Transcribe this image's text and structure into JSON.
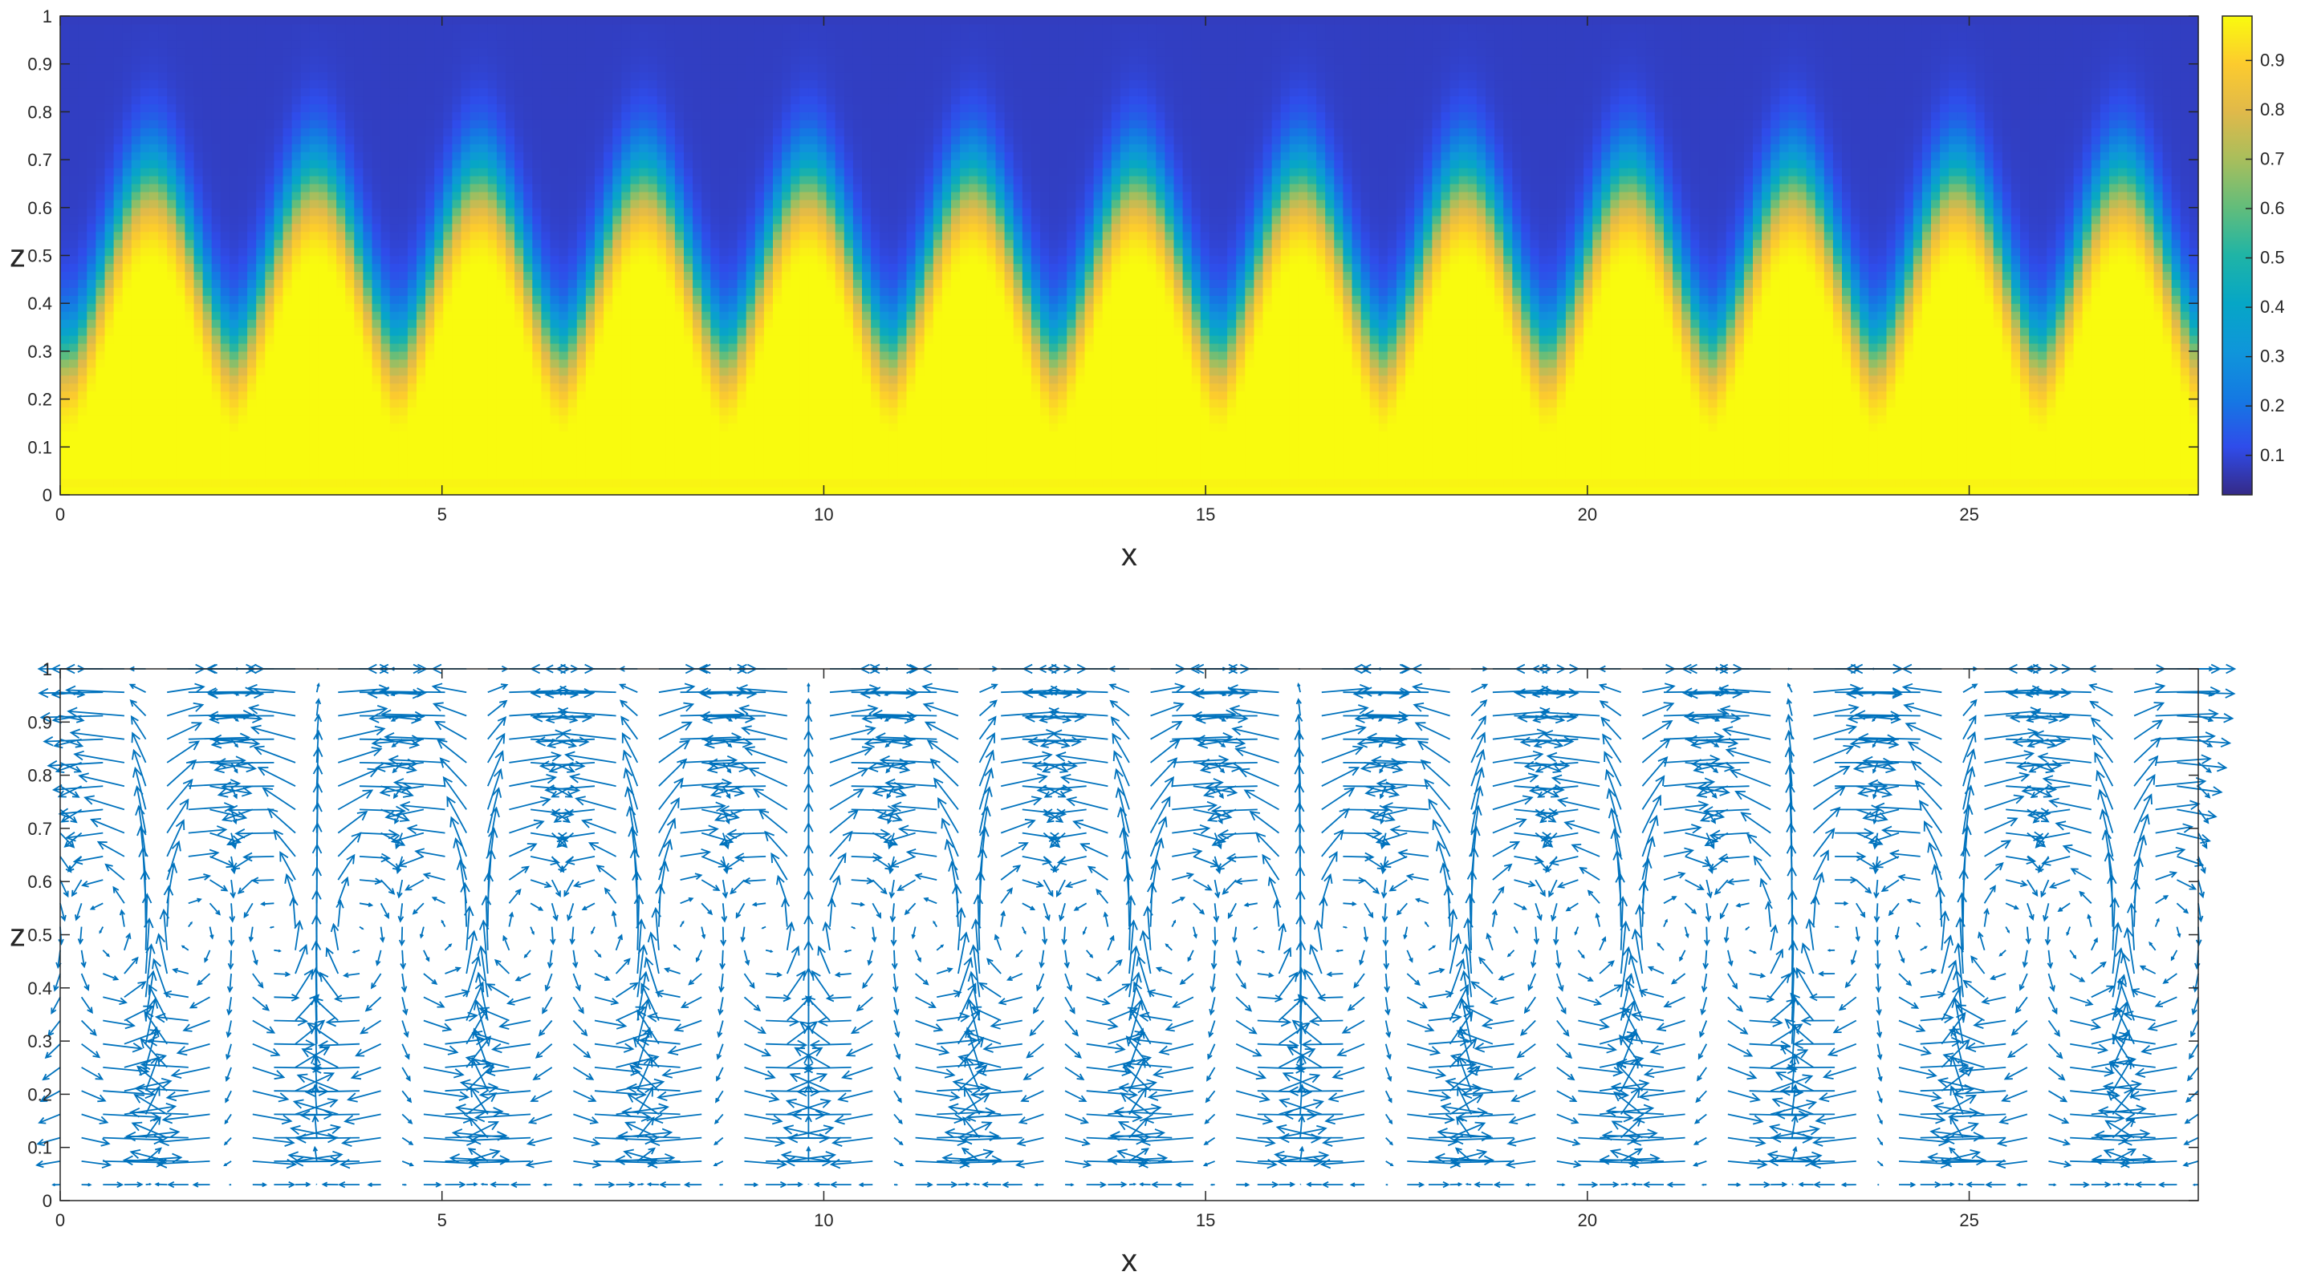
{
  "chart_data": [
    {
      "type": "heatmap",
      "title": "",
      "xlabel": "x",
      "ylabel": "z",
      "xlim": [
        0,
        28
      ],
      "ylim": [
        0,
        1
      ],
      "x_ticks": [
        "0",
        "5",
        "10",
        "15",
        "20",
        "25"
      ],
      "y_ticks": [
        "0",
        "0.1",
        "0.2",
        "0.3",
        "0.4",
        "0.5",
        "0.6",
        "0.7",
        "0.8",
        "0.9",
        "1"
      ],
      "field": {
        "description_free_params": true,
        "plume_count": 13,
        "plume_first_x": 1.2,
        "plume_spacing_x": 2.15,
        "value_at_z0": 1.0,
        "value_at_z1": 0.02
      },
      "colorbar": {
        "colormap": "parula",
        "range": [
          0.02,
          0.99
        ],
        "ticks": [
          "0.1",
          "0.2",
          "0.3",
          "0.4",
          "0.5",
          "0.6",
          "0.7",
          "0.8",
          "0.9"
        ]
      }
    },
    {
      "type": "scatter",
      "subtype": "quiver",
      "title": "",
      "xlabel": "x",
      "ylabel": "z",
      "xlim": [
        0,
        28
      ],
      "ylim": [
        0,
        1
      ],
      "x_ticks": [
        "0",
        "5",
        "10",
        "15",
        "20",
        "25"
      ],
      "y_ticks": [
        "0",
        "0.1",
        "0.2",
        "0.3",
        "0.4",
        "0.5",
        "0.6",
        "0.7",
        "0.8",
        "0.9",
        "1"
      ],
      "arrow_color": "#0072BD",
      "grid_nx": 100,
      "grid_nz": 22,
      "plume_count": 13,
      "plume_first_x": 1.2,
      "plume_spacing_x": 2.15
    }
  ]
}
